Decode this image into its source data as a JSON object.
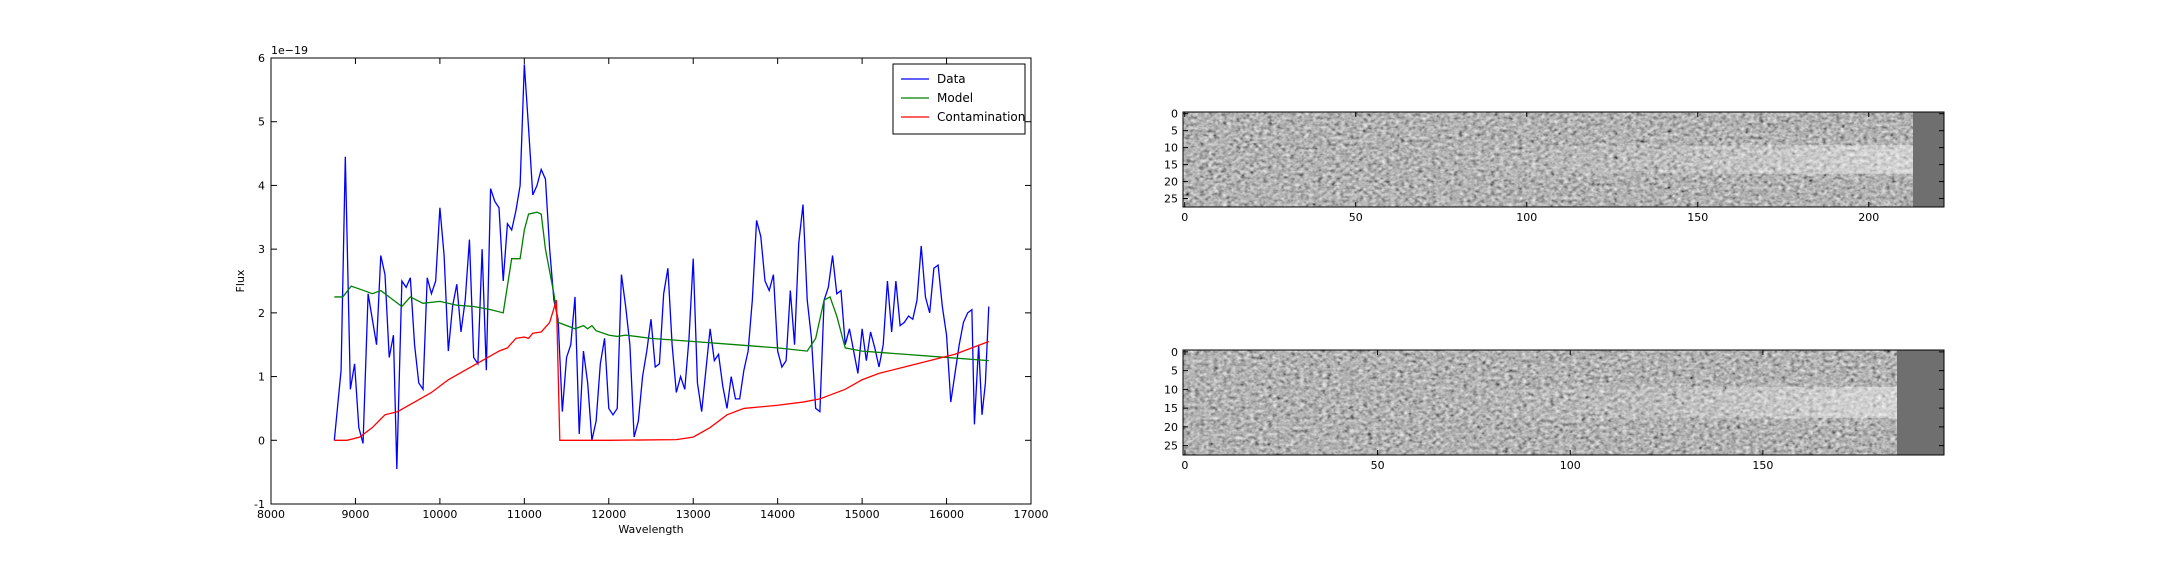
{
  "chart_data": [
    {
      "type": "line",
      "xlabel": "Wavelength",
      "ylabel": "Flux",
      "offset_text": "1e−19",
      "xlim": [
        8000,
        17000
      ],
      "xticks": [
        8000,
        9000,
        10000,
        11000,
        12000,
        13000,
        14000,
        15000,
        16000,
        17000
      ],
      "ylim": [
        -1,
        6
      ],
      "yticks": [
        -1,
        0,
        1,
        2,
        3,
        4,
        5,
        6
      ],
      "grid": false,
      "legend": "upper right",
      "series": [
        {
          "name": "Data",
          "color": "#0000ff",
          "x": [
            8750,
            8830,
            8880,
            8940,
            8990,
            9040,
            9090,
            9150,
            9200,
            9250,
            9300,
            9350,
            9400,
            9450,
            9490,
            9550,
            9600,
            9650,
            9700,
            9750,
            9800,
            9850,
            9900,
            9950,
            10000,
            10050,
            10100,
            10150,
            10200,
            10250,
            10300,
            10350,
            10400,
            10450,
            10500,
            10550,
            10600,
            10650,
            10700,
            10750,
            10800,
            10850,
            10900,
            10950,
            11000,
            11050,
            11100,
            11150,
            11200,
            11250,
            11300,
            11350,
            11400,
            11450,
            11500,
            11550,
            11600,
            11650,
            11700,
            11750,
            11800,
            11850,
            11900,
            11950,
            12000,
            12050,
            12100,
            12150,
            12200,
            12250,
            12300,
            12350,
            12400,
            12450,
            12500,
            12550,
            12600,
            12650,
            12700,
            12750,
            12800,
            12850,
            12900,
            12950,
            13000,
            13050,
            13100,
            13150,
            13200,
            13250,
            13300,
            13350,
            13400,
            13450,
            13500,
            13550,
            13600,
            13650,
            13700,
            13750,
            13800,
            13850,
            13900,
            13950,
            14000,
            14050,
            14100,
            14150,
            14200,
            14250,
            14300,
            14350,
            14400,
            14450,
            14500,
            14550,
            14600,
            14650,
            14700,
            14750,
            14800,
            14850,
            14900,
            14950,
            15000,
            15050,
            15100,
            15150,
            15200,
            15250,
            15300,
            15350,
            15400,
            15450,
            15500,
            15550,
            15600,
            15650,
            15700,
            15750,
            15800,
            15850,
            15900,
            15950,
            16000,
            16050,
            16100,
            16150,
            16200,
            16250,
            16300,
            16330,
            16380,
            16420,
            16460,
            16500
          ],
          "values": [
            0,
            1.1,
            4.45,
            0.8,
            1.2,
            0.2,
            -0.05,
            2.3,
            1.9,
            1.5,
            2.9,
            2.6,
            1.3,
            1.65,
            -0.45,
            2.5,
            2.4,
            2.55,
            1.5,
            0.9,
            0.8,
            2.55,
            2.3,
            2.5,
            3.65,
            2.9,
            1.4,
            2.1,
            2.45,
            1.7,
            2.2,
            3.15,
            1.3,
            1.2,
            3.0,
            1.1,
            3.95,
            3.75,
            3.65,
            2.5,
            3.4,
            3.3,
            3.6,
            4.0,
            5.9,
            4.9,
            3.85,
            4.0,
            4.25,
            4.1,
            3.0,
            2.2,
            1.9,
            0.45,
            1.3,
            1.5,
            2.25,
            0.1,
            1.4,
            0.9,
            0,
            0.3,
            1.2,
            1.6,
            0.5,
            0.4,
            0.5,
            2.6,
            2.1,
            1.5,
            0.05,
            0.3,
            1.0,
            1.4,
            1.9,
            1.15,
            1.2,
            2.3,
            2.7,
            1.5,
            0.75,
            1.0,
            0.8,
            1.6,
            2.85,
            0.9,
            0.45,
            1.1,
            1.75,
            1.25,
            1.35,
            0.85,
            0.5,
            1.0,
            0.65,
            0.65,
            1.1,
            1.4,
            2.2,
            3.45,
            3.2,
            2.5,
            2.35,
            2.6,
            1.4,
            1.15,
            1.25,
            2.35,
            1.5,
            3.1,
            3.7,
            2.2,
            1.6,
            0.5,
            0.45,
            2.2,
            2.4,
            2.9,
            2.3,
            2.35,
            1.5,
            1.75,
            1.4,
            1.05,
            1.75,
            1.25,
            1.7,
            1.45,
            1.15,
            1.5,
            2.5,
            1.7,
            2.5,
            1.8,
            1.85,
            1.95,
            1.9,
            2.2,
            3.05,
            2.25,
            2.0,
            2.7,
            2.75,
            2.1,
            1.65,
            0.6,
            1.05,
            1.5,
            1.85,
            2.0,
            2.05,
            0.25,
            1.5,
            0.4,
            0.9,
            2.1
          ]
        },
        {
          "name": "Model",
          "color": "#008000",
          "x": [
            8750,
            8850,
            8950,
            9100,
            9200,
            9300,
            9450,
            9550,
            9650,
            9800,
            10000,
            10200,
            10400,
            10600,
            10750,
            10850,
            10950,
            11000,
            11050,
            11150,
            11200,
            11250,
            11350,
            11400,
            11600,
            11700,
            11750,
            11800,
            11850,
            12000,
            12100,
            12200,
            12500,
            13000,
            13500,
            14000,
            14350,
            14450,
            14550,
            14620,
            14700,
            14800,
            15000,
            15500,
            16000,
            16500
          ],
          "values": [
            2.25,
            2.25,
            2.42,
            2.35,
            2.3,
            2.35,
            2.2,
            2.1,
            2.25,
            2.15,
            2.18,
            2.12,
            2.1,
            2.05,
            2.0,
            2.85,
            2.85,
            3.3,
            3.55,
            3.58,
            3.55,
            3.0,
            2.3,
            1.85,
            1.75,
            1.8,
            1.75,
            1.8,
            1.72,
            1.65,
            1.63,
            1.65,
            1.6,
            1.55,
            1.5,
            1.45,
            1.4,
            1.6,
            2.2,
            2.25,
            1.95,
            1.45,
            1.4,
            1.35,
            1.3,
            1.25
          ]
        },
        {
          "name": "Contamination",
          "color": "#ff0000",
          "x": [
            8750,
            8900,
            9050,
            9200,
            9350,
            9500,
            9700,
            9900,
            10100,
            10300,
            10500,
            10700,
            10800,
            10900,
            11000,
            11050,
            11100,
            11200,
            11300,
            11380,
            11420,
            12000,
            12800,
            13000,
            13200,
            13400,
            13600,
            14000,
            14300,
            14500,
            14600,
            14800,
            15000,
            15200,
            15500,
            15800,
            16100,
            16300,
            16500
          ],
          "values": [
            0,
            0,
            0.05,
            0.2,
            0.4,
            0.45,
            0.6,
            0.75,
            0.95,
            1.1,
            1.25,
            1.4,
            1.45,
            1.6,
            1.62,
            1.6,
            1.68,
            1.7,
            1.85,
            2.2,
            0,
            0,
            0.01,
            0.05,
            0.2,
            0.4,
            0.5,
            0.55,
            0.6,
            0.65,
            0.7,
            0.8,
            0.95,
            1.05,
            1.15,
            1.25,
            1.35,
            1.45,
            1.55
          ]
        }
      ]
    },
    {
      "type": "image",
      "xlim": [
        -0.5,
        222
      ],
      "xticks": [
        0,
        50,
        100,
        150,
        200
      ],
      "ylim": [
        27.5,
        -0.5
      ],
      "yticks": [
        0,
        5,
        10,
        15,
        20,
        25
      ]
    },
    {
      "type": "image",
      "xlim": [
        -0.5,
        197
      ],
      "xticks": [
        0,
        50,
        100,
        150
      ],
      "ylim": [
        27.5,
        -0.5
      ],
      "yticks": [
        0,
        5,
        10,
        15,
        20,
        25
      ]
    }
  ]
}
